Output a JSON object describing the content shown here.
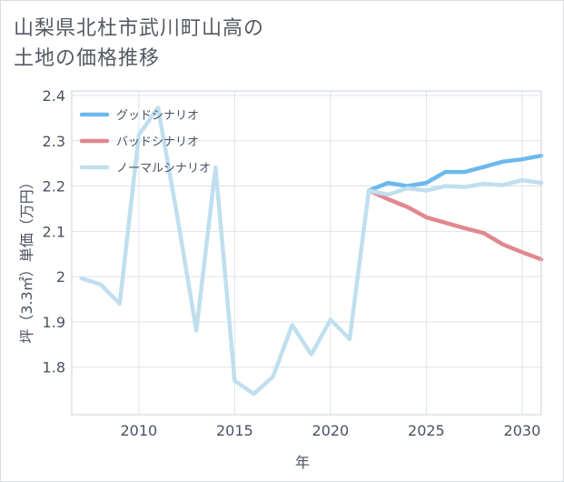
{
  "title_lines": [
    "山梨県北杜市武川町山高の",
    "土地の価格推移"
  ],
  "chart_data": {
    "type": "line",
    "title": "山梨県北杜市武川町山高の土地の価格推移",
    "xlabel": "年",
    "ylabel": "坪（3.3㎡）単価（万円）",
    "xlim": [
      2006.5,
      2031
    ],
    "ylim": [
      1.695,
      2.41
    ],
    "x_ticks": [
      2010,
      2015,
      2020,
      2025,
      2030
    ],
    "y_ticks": [
      1.8,
      1.9,
      2.0,
      2.1,
      2.2,
      2.3,
      2.4
    ],
    "x_tick_labels": [
      "2010",
      "2015",
      "2020",
      "2025",
      "2030"
    ],
    "y_tick_labels": [
      "1.8",
      "1.9",
      "2",
      "2.1",
      "2.2",
      "2.3",
      "2.4"
    ],
    "grid": true,
    "legend_position": "top-left",
    "series": [
      {
        "name": "グッドシナリオ",
        "color": "#6cb8ec",
        "points": [
          [
            2022,
            2.19
          ],
          [
            2023,
            2.207
          ],
          [
            2024,
            2.2
          ],
          [
            2025,
            2.207
          ],
          [
            2026,
            2.231
          ],
          [
            2027,
            2.231
          ],
          [
            2028,
            2.242
          ],
          [
            2029,
            2.254
          ],
          [
            2030,
            2.259
          ],
          [
            2031,
            2.267
          ]
        ]
      },
      {
        "name": "バッドシナリオ",
        "color": "#e0888f",
        "points": [
          [
            2022,
            2.19
          ],
          [
            2023,
            2.171
          ],
          [
            2024,
            2.154
          ],
          [
            2025,
            2.131
          ],
          [
            2026,
            2.119
          ],
          [
            2027,
            2.107
          ],
          [
            2028,
            2.096
          ],
          [
            2029,
            2.071
          ],
          [
            2030,
            2.054
          ],
          [
            2031,
            2.038
          ]
        ]
      },
      {
        "name": "ノーマルシナリオ",
        "color": "#c0dfee",
        "points": [
          [
            2007,
            1.996
          ],
          [
            2008,
            1.983
          ],
          [
            2009,
            1.94
          ],
          [
            2010,
            2.313
          ],
          [
            2011,
            2.373
          ],
          [
            2012,
            2.134
          ],
          [
            2013,
            1.881
          ],
          [
            2014,
            2.241
          ],
          [
            2015,
            1.77
          ],
          [
            2016,
            1.741
          ],
          [
            2017,
            1.779
          ],
          [
            2018,
            1.893
          ],
          [
            2019,
            1.828
          ],
          [
            2020,
            1.905
          ],
          [
            2021,
            1.862
          ],
          [
            2022,
            2.19
          ],
          [
            2023,
            2.181
          ],
          [
            2024,
            2.195
          ],
          [
            2025,
            2.19
          ],
          [
            2026,
            2.2
          ],
          [
            2027,
            2.198
          ],
          [
            2028,
            2.205
          ],
          [
            2029,
            2.202
          ],
          [
            2030,
            2.213
          ],
          [
            2031,
            2.207
          ]
        ]
      }
    ]
  }
}
